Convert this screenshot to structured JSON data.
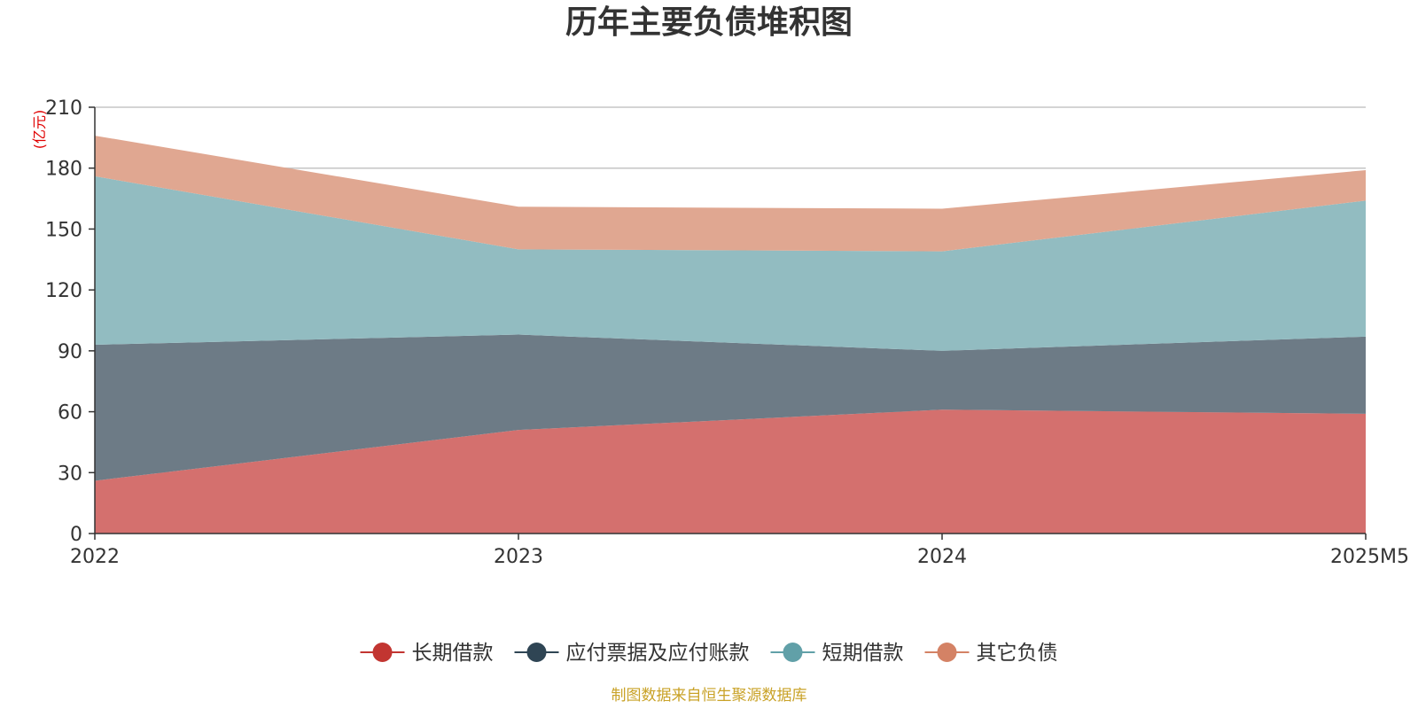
{
  "chart_data": {
    "type": "area",
    "stacked": true,
    "title": "历年主要负债堆积图",
    "unit": "(亿元)",
    "categories": [
      "2022",
      "2023",
      "2024",
      "2025M5"
    ],
    "ylim": [
      0,
      210
    ],
    "yticks": [
      0,
      30,
      60,
      90,
      120,
      150,
      180,
      210
    ],
    "grid": true,
    "legend_position": "bottom",
    "series": [
      {
        "name": "长期借款",
        "values": [
          26,
          51,
          61,
          59
        ],
        "color": "#c23531",
        "fill": "#d4706e"
      },
      {
        "name": "应付票据及应付账款",
        "values": [
          67,
          47,
          29,
          38
        ],
        "color": "#2f4554",
        "fill": "#6d7b86"
      },
      {
        "name": "短期借款",
        "values": [
          83,
          42,
          49,
          67
        ],
        "color": "#61a0a8",
        "fill": "#92bcc1"
      },
      {
        "name": "其它负债",
        "values": [
          20,
          21,
          21,
          15
        ],
        "color": "#d48265",
        "fill": "#e0a791"
      }
    ],
    "source": "制图数据来自恒生聚源数据库"
  }
}
